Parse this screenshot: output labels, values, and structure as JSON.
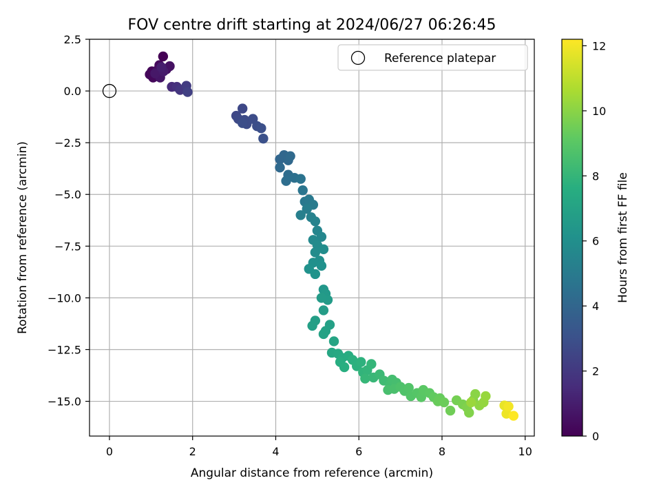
{
  "chart_data": {
    "type": "scatter",
    "title": "FOV centre drift starting at 2024/06/27 06:26:45",
    "xlabel": "Angular distance from reference (arcmin)",
    "ylabel": "Rotation from reference (arcmin)",
    "xlim": [
      -0.48,
      10.22
    ],
    "ylim": [
      -16.68,
      2.5
    ],
    "xticks": [
      0,
      2,
      4,
      6,
      8,
      10
    ],
    "xtick_labels": [
      "0",
      "2",
      "4",
      "6",
      "8",
      "10"
    ],
    "yticks": [
      2.5,
      0.0,
      -2.5,
      -5.0,
      -7.5,
      -10.0,
      -12.5,
      -15.0
    ],
    "ytick_labels": [
      "2.5",
      "0.0",
      "−2.5",
      "−5.0",
      "−7.5",
      "−10.0",
      "−12.5",
      "−15.0"
    ],
    "grid": true,
    "legend": {
      "placement": "top-right",
      "entries": [
        {
          "label": "Reference platepar",
          "marker": "open-circle"
        }
      ]
    },
    "reference_point": {
      "x": 0,
      "y": 0
    },
    "colorbar": {
      "label": "Hours from first FF file",
      "range": [
        0,
        12.2
      ],
      "ticks": [
        0,
        2,
        4,
        6,
        8,
        10,
        12
      ],
      "tick_labels": [
        "0",
        "2",
        "4",
        "6",
        "8",
        "10",
        "12"
      ],
      "colormap": "viridis"
    },
    "points": [
      {
        "x": 1.29,
        "y": 1.67,
        "c": 0.0
      },
      {
        "x": 1.02,
        "y": 0.95,
        "c": 0.1
      },
      {
        "x": 0.97,
        "y": 0.8,
        "c": 0.2
      },
      {
        "x": 1.05,
        "y": 0.65,
        "c": 0.25
      },
      {
        "x": 1.2,
        "y": 1.25,
        "c": 0.3
      },
      {
        "x": 1.15,
        "y": 1.0,
        "c": 0.4
      },
      {
        "x": 1.37,
        "y": 1.05,
        "c": 0.5
      },
      {
        "x": 1.45,
        "y": 1.2,
        "c": 0.6
      },
      {
        "x": 1.22,
        "y": 0.65,
        "c": 0.7
      },
      {
        "x": 1.1,
        "y": 0.85,
        "c": 0.8
      },
      {
        "x": 1.3,
        "y": 0.95,
        "c": 0.9
      },
      {
        "x": 1.25,
        "y": 1.15,
        "c": 1.0
      },
      {
        "x": 1.5,
        "y": 0.2,
        "c": 1.5
      },
      {
        "x": 1.62,
        "y": 0.2,
        "c": 1.7
      },
      {
        "x": 1.7,
        "y": 0.05,
        "c": 1.9
      },
      {
        "x": 1.85,
        "y": 0.25,
        "c": 2.1
      },
      {
        "x": 1.88,
        "y": -0.05,
        "c": 2.3
      },
      {
        "x": 3.05,
        "y": -1.2,
        "c": 2.6
      },
      {
        "x": 3.2,
        "y": -0.85,
        "c": 2.65
      },
      {
        "x": 3.1,
        "y": -1.35,
        "c": 2.7
      },
      {
        "x": 3.25,
        "y": -1.4,
        "c": 2.75
      },
      {
        "x": 3.3,
        "y": -1.6,
        "c": 2.8
      },
      {
        "x": 3.45,
        "y": -1.35,
        "c": 2.85
      },
      {
        "x": 3.55,
        "y": -1.7,
        "c": 2.9
      },
      {
        "x": 3.65,
        "y": -1.8,
        "c": 2.95
      },
      {
        "x": 3.7,
        "y": -2.3,
        "c": 3.0
      },
      {
        "x": 3.2,
        "y": -1.55,
        "c": 2.9
      },
      {
        "x": 4.1,
        "y": -3.3,
        "c": 4.0
      },
      {
        "x": 4.2,
        "y": -3.1,
        "c": 4.05
      },
      {
        "x": 4.3,
        "y": -3.35,
        "c": 4.1
      },
      {
        "x": 4.1,
        "y": -3.7,
        "c": 4.15
      },
      {
        "x": 4.35,
        "y": -3.15,
        "c": 4.2
      },
      {
        "x": 4.3,
        "y": -4.05,
        "c": 4.3
      },
      {
        "x": 4.25,
        "y": -4.35,
        "c": 4.4
      },
      {
        "x": 4.45,
        "y": -4.2,
        "c": 4.5
      },
      {
        "x": 4.6,
        "y": -4.25,
        "c": 4.6
      },
      {
        "x": 4.65,
        "y": -4.8,
        "c": 4.7
      },
      {
        "x": 4.7,
        "y": -5.35,
        "c": 4.8
      },
      {
        "x": 4.8,
        "y": -5.25,
        "c": 4.9
      },
      {
        "x": 4.9,
        "y": -5.5,
        "c": 5.0
      },
      {
        "x": 4.75,
        "y": -5.7,
        "c": 5.1
      },
      {
        "x": 4.6,
        "y": -6.0,
        "c": 5.2
      },
      {
        "x": 4.85,
        "y": -6.1,
        "c": 5.3
      },
      {
        "x": 4.95,
        "y": -6.3,
        "c": 5.4
      },
      {
        "x": 5.0,
        "y": -6.75,
        "c": 5.5
      },
      {
        "x": 5.1,
        "y": -7.05,
        "c": 5.6
      },
      {
        "x": 4.9,
        "y": -7.2,
        "c": 5.7
      },
      {
        "x": 5.0,
        "y": -7.45,
        "c": 5.8
      },
      {
        "x": 4.95,
        "y": -7.8,
        "c": 5.85
      },
      {
        "x": 5.15,
        "y": -7.65,
        "c": 5.9
      },
      {
        "x": 5.05,
        "y": -8.2,
        "c": 6.0
      },
      {
        "x": 4.9,
        "y": -8.3,
        "c": 6.05
      },
      {
        "x": 5.1,
        "y": -8.45,
        "c": 6.1
      },
      {
        "x": 4.8,
        "y": -8.6,
        "c": 6.15
      },
      {
        "x": 4.95,
        "y": -8.85,
        "c": 6.2
      },
      {
        "x": 5.15,
        "y": -9.6,
        "c": 6.4
      },
      {
        "x": 5.2,
        "y": -9.8,
        "c": 6.5
      },
      {
        "x": 5.25,
        "y": -10.1,
        "c": 6.6
      },
      {
        "x": 5.1,
        "y": -10.0,
        "c": 6.65
      },
      {
        "x": 5.15,
        "y": -10.6,
        "c": 6.7
      },
      {
        "x": 4.95,
        "y": -11.1,
        "c": 6.8
      },
      {
        "x": 4.88,
        "y": -11.35,
        "c": 6.85
      },
      {
        "x": 5.3,
        "y": -11.3,
        "c": 6.9
      },
      {
        "x": 5.2,
        "y": -11.6,
        "c": 6.95
      },
      {
        "x": 5.15,
        "y": -11.75,
        "c": 7.0
      },
      {
        "x": 5.4,
        "y": -12.1,
        "c": 7.1
      },
      {
        "x": 5.35,
        "y": -12.65,
        "c": 7.2
      },
      {
        "x": 5.5,
        "y": -12.7,
        "c": 7.3
      },
      {
        "x": 5.6,
        "y": -12.9,
        "c": 7.4
      },
      {
        "x": 5.75,
        "y": -12.8,
        "c": 7.5
      },
      {
        "x": 5.55,
        "y": -13.1,
        "c": 7.55
      },
      {
        "x": 5.65,
        "y": -13.35,
        "c": 7.6
      },
      {
        "x": 5.85,
        "y": -13.0,
        "c": 7.7
      },
      {
        "x": 5.95,
        "y": -13.3,
        "c": 7.75
      },
      {
        "x": 6.05,
        "y": -13.1,
        "c": 7.8
      },
      {
        "x": 6.1,
        "y": -13.6,
        "c": 7.9
      },
      {
        "x": 6.2,
        "y": -13.5,
        "c": 7.95
      },
      {
        "x": 6.3,
        "y": -13.2,
        "c": 8.0
      },
      {
        "x": 6.15,
        "y": -13.9,
        "c": 8.05
      },
      {
        "x": 6.35,
        "y": -13.85,
        "c": 8.1
      },
      {
        "x": 6.5,
        "y": -13.7,
        "c": 8.2
      },
      {
        "x": 6.6,
        "y": -14.0,
        "c": 8.3
      },
      {
        "x": 6.75,
        "y": -14.2,
        "c": 8.4
      },
      {
        "x": 6.8,
        "y": -13.95,
        "c": 8.45
      },
      {
        "x": 6.9,
        "y": -14.1,
        "c": 8.5
      },
      {
        "x": 6.7,
        "y": -14.45,
        "c": 8.55
      },
      {
        "x": 6.85,
        "y": -14.4,
        "c": 8.6
      },
      {
        "x": 7.0,
        "y": -14.3,
        "c": 8.7
      },
      {
        "x": 7.1,
        "y": -14.5,
        "c": 8.75
      },
      {
        "x": 7.2,
        "y": -14.35,
        "c": 8.8
      },
      {
        "x": 7.25,
        "y": -14.75,
        "c": 8.85
      },
      {
        "x": 7.4,
        "y": -14.6,
        "c": 8.9
      },
      {
        "x": 7.5,
        "y": -14.8,
        "c": 9.0
      },
      {
        "x": 7.55,
        "y": -14.45,
        "c": 9.05
      },
      {
        "x": 7.7,
        "y": -14.6,
        "c": 9.1
      },
      {
        "x": 7.8,
        "y": -14.8,
        "c": 9.2
      },
      {
        "x": 7.95,
        "y": -14.85,
        "c": 9.3
      },
      {
        "x": 7.9,
        "y": -15.0,
        "c": 9.35
      },
      {
        "x": 8.05,
        "y": -15.05,
        "c": 9.4
      },
      {
        "x": 8.2,
        "y": -15.45,
        "c": 9.5
      },
      {
        "x": 8.35,
        "y": -14.95,
        "c": 9.6
      },
      {
        "x": 8.5,
        "y": -15.15,
        "c": 9.7
      },
      {
        "x": 8.6,
        "y": -15.3,
        "c": 9.8
      },
      {
        "x": 8.65,
        "y": -15.55,
        "c": 9.85
      },
      {
        "x": 8.75,
        "y": -14.95,
        "c": 9.9
      },
      {
        "x": 8.8,
        "y": -14.65,
        "c": 10.0
      },
      {
        "x": 8.9,
        "y": -15.2,
        "c": 10.1
      },
      {
        "x": 9.0,
        "y": -15.05,
        "c": 10.2
      },
      {
        "x": 9.05,
        "y": -14.75,
        "c": 10.25
      },
      {
        "x": 8.7,
        "y": -15.05,
        "c": 10.3
      },
      {
        "x": 9.5,
        "y": -15.2,
        "c": 11.8
      },
      {
        "x": 9.55,
        "y": -15.6,
        "c": 11.9
      },
      {
        "x": 9.6,
        "y": -15.25,
        "c": 12.0
      },
      {
        "x": 9.72,
        "y": -15.7,
        "c": 12.2
      }
    ]
  }
}
